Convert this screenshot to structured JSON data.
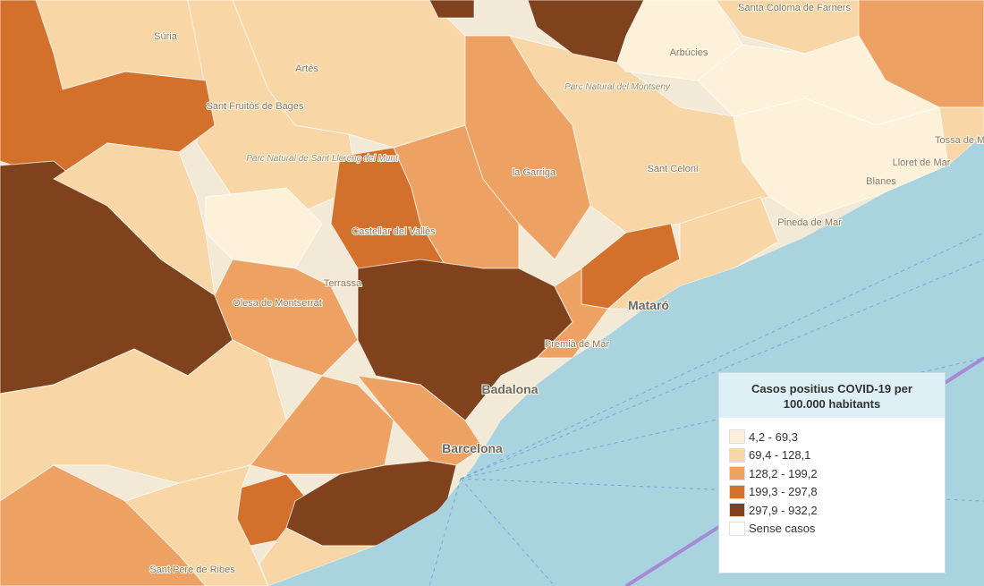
{
  "legend": {
    "title": "Casos positius COVID-19 per 100.000 habitants",
    "items": [
      {
        "label": "4,2 - 69,3",
        "color": "#fdf1d9"
      },
      {
        "label": "69,4 - 128,1",
        "color": "#f8d6a6"
      },
      {
        "label": "128,2 - 199,2",
        "color": "#eda263"
      },
      {
        "label": "199,3 - 297,8",
        "color": "#d2702c"
      },
      {
        "label": "297,9 - 932,2",
        "color": "#7f421c"
      },
      {
        "label": "Sense casos",
        "color": "#ffffff"
      }
    ]
  },
  "places": [
    "Súria",
    "Artés",
    "Arbúcies",
    "Santa Coloma de Farners",
    "Sant Fruitós de Bages",
    "Parc Natural del Montseny",
    "Parc Natural de Sant Llorenç del Munt",
    "Castellar del Vallès",
    "la Garriga",
    "Sant Celoni",
    "Lloret de Mar",
    "Tossa de Mar",
    "Blanes",
    "Pineda de Mar",
    "Terrassa",
    "Olesa de Montserrat",
    "Mataró",
    "Premià de Mar",
    "Badalona",
    "Barcelona",
    "Sant Pere de Ribes"
  ]
}
